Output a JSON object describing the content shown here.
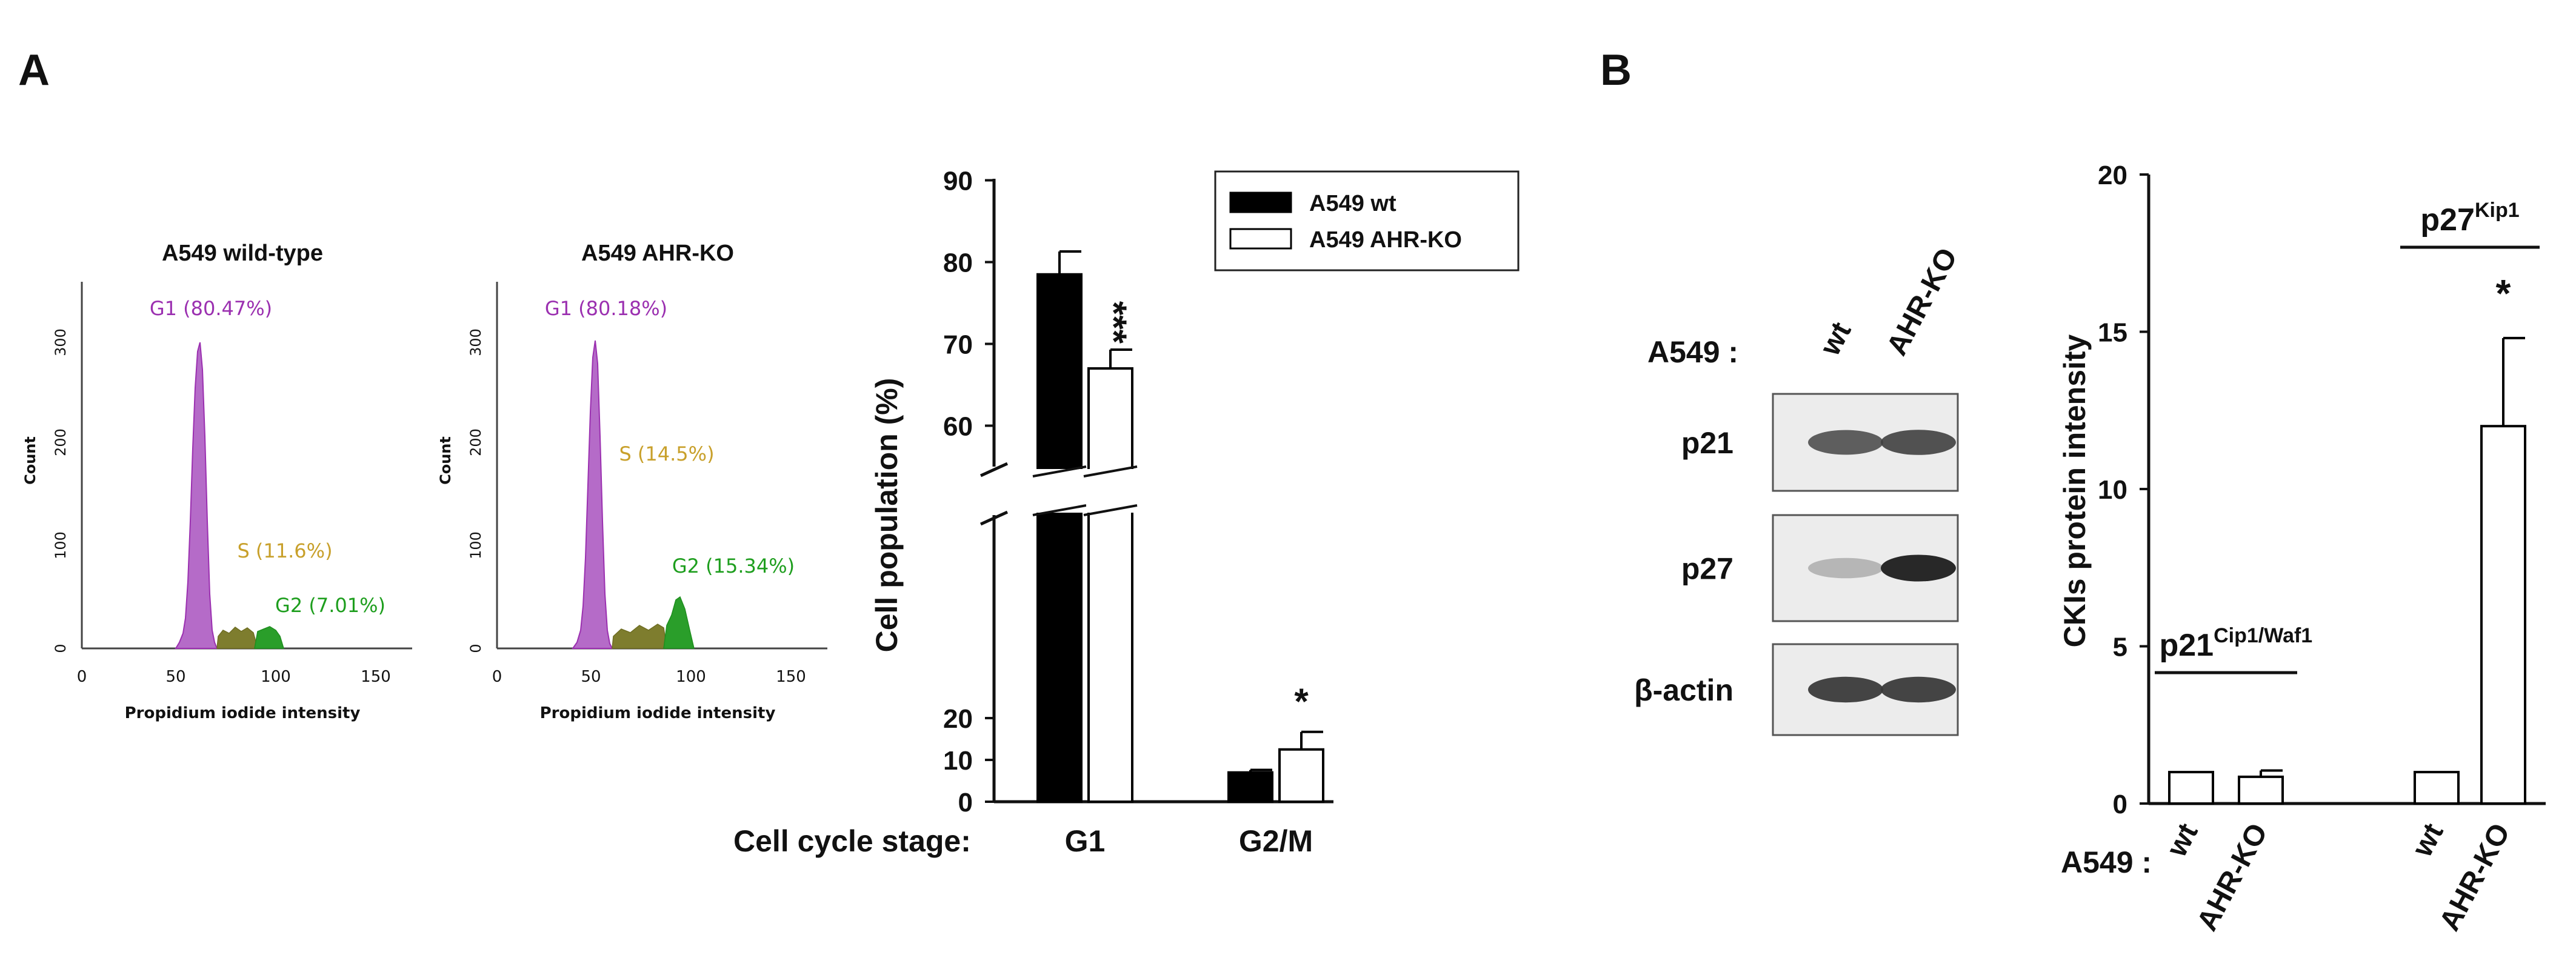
{
  "panel_a_label": "A",
  "panel_b_label": "B",
  "colors": {
    "purple": "#9B30B0",
    "purple_fill": "#B56BC8",
    "olive": "#7E7D2E",
    "green": "#1E9E1E",
    "s_text": "#C8A02B",
    "g2_text": "#1E9E1E"
  },
  "histograms": [
    {
      "title": "A549 wild-type",
      "ylabel": "Count",
      "xlabel": "Propidium iodide intensity",
      "xticks": [
        "0",
        "50",
        "100",
        "150"
      ],
      "yticks": [
        "0",
        "100",
        "200",
        "300"
      ],
      "g1_label": "G1 (80.47%)",
      "s_label": "S (11.6%)",
      "g2_label": "G2 (7.01%)"
    },
    {
      "title": "A549 AHR-KO",
      "ylabel": "Count",
      "xlabel": "Propidium iodide intensity",
      "xticks": [
        "0",
        "50",
        "100",
        "150"
      ],
      "yticks": [
        "0",
        "100",
        "200",
        "300"
      ],
      "g1_label": "G1 (80.18%)",
      "s_label": "S (14.5%)",
      "g2_label": "G2 (15.34%)"
    }
  ],
  "chart_data": [
    {
      "type": "bar",
      "panel": "A",
      "ylabel": "Cell population (%)",
      "xlabel_prefix": "Cell cycle stage:",
      "categories": [
        "G1",
        "G2/M"
      ],
      "series": [
        {
          "name": "A549 wt",
          "values": [
            78.5,
            7.0
          ],
          "errors": [
            2.8,
            0.6
          ],
          "fill": "#000000"
        },
        {
          "name": "A549 AHR-KO",
          "values": [
            67.0,
            12.5
          ],
          "errors": [
            2.3,
            4.2
          ],
          "fill": "#ffffff"
        }
      ],
      "significance": [
        "***",
        "*"
      ],
      "broken_axis": true,
      "lower_ticks": [
        "0",
        "10",
        "20"
      ],
      "upper_ticks": [
        "60",
        "70",
        "80",
        "90"
      ],
      "legend_position": "top-right"
    },
    {
      "type": "bar",
      "panel": "B",
      "ylabel": "CKIs protein intensity",
      "ylim": [
        0,
        20
      ],
      "yticks": [
        "0",
        "5",
        "10",
        "15",
        "20"
      ],
      "row_label": "A549 :",
      "groups": [
        {
          "label_main": "p21",
          "label_sup": "Cip1/Waf1",
          "categories": [
            "wt",
            "AHR-KO"
          ],
          "values": [
            1.0,
            0.85
          ],
          "errors": [
            0,
            0.2
          ],
          "sig": ""
        },
        {
          "label_main": "p27",
          "label_sup": "Kip1",
          "categories": [
            "wt",
            "AHR-KO"
          ],
          "values": [
            1.0,
            12.0
          ],
          "errors": [
            0,
            2.8
          ],
          "sig": "*"
        }
      ]
    }
  ],
  "blot": {
    "row_label": "A549 :",
    "lanes": [
      "wt",
      "AHR-KO"
    ],
    "bands": [
      {
        "label": "p21",
        "intensity": [
          0.8,
          0.85
        ]
      },
      {
        "label": "p27",
        "intensity": [
          0.35,
          1.0
        ]
      },
      {
        "label": "β-actin",
        "intensity": [
          0.9,
          0.9
        ]
      }
    ]
  }
}
